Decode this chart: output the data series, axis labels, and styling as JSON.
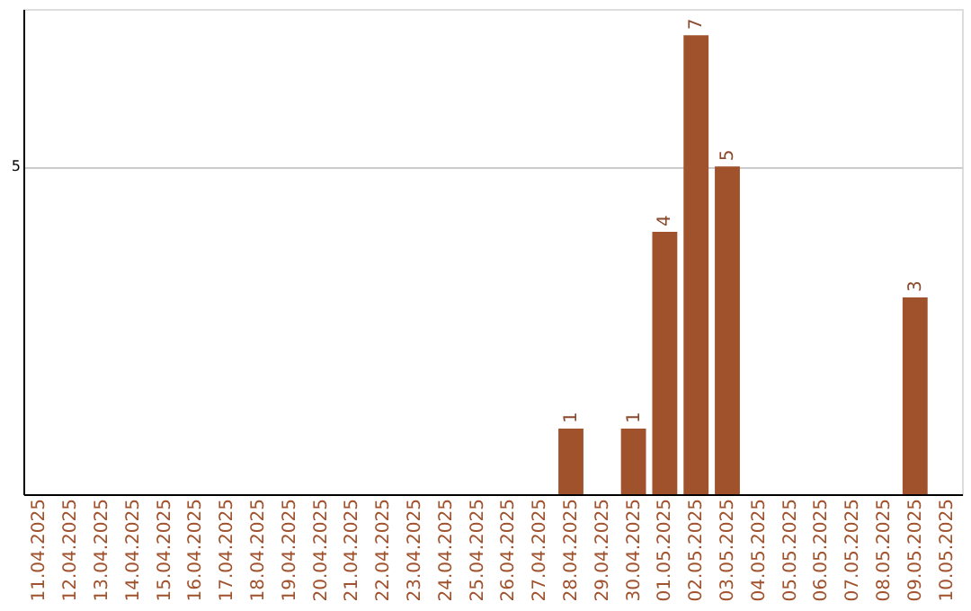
{
  "chart_data": {
    "type": "bar",
    "categories": [
      "11.04.2025",
      "12.04.2025",
      "13.04.2025",
      "14.04.2025",
      "15.04.2025",
      "16.04.2025",
      "17.04.2025",
      "18.04.2025",
      "19.04.2025",
      "20.04.2025",
      "21.04.2025",
      "22.04.2025",
      "23.04.2025",
      "24.04.2025",
      "25.04.2025",
      "26.04.2025",
      "27.04.2025",
      "28.04.2025",
      "29.04.2025",
      "30.04.2025",
      "01.05.2025",
      "02.05.2025",
      "03.05.2025",
      "04.05.2025",
      "05.05.2025",
      "06.05.2025",
      "07.05.2025",
      "08.05.2025",
      "09.05.2025",
      "10.05.2025"
    ],
    "values": [
      null,
      null,
      null,
      null,
      null,
      null,
      null,
      null,
      null,
      null,
      null,
      null,
      null,
      null,
      null,
      null,
      null,
      1,
      null,
      1,
      4,
      7,
      5,
      null,
      null,
      null,
      null,
      null,
      3,
      null
    ],
    "data_labels": true,
    "color": "#a0522d",
    "ylim": [
      0,
      7.4
    ],
    "yticks": [
      5
    ],
    "grid": "y"
  }
}
